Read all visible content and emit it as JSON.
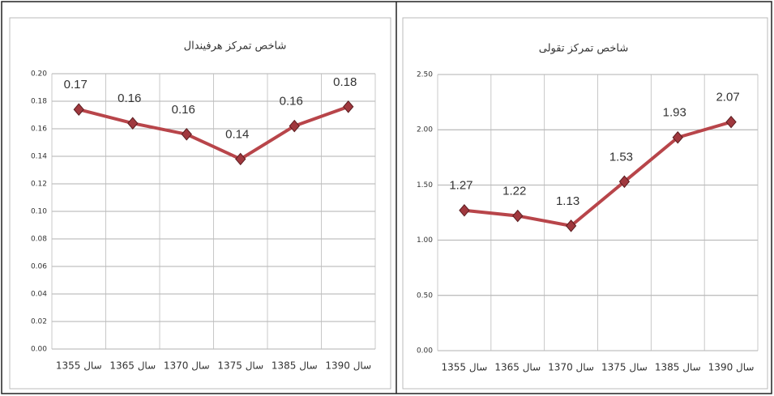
{
  "chart_data": [
    {
      "type": "line",
      "title": "شاخص تمرکز هرفیندال",
      "categories": [
        "سال 1355",
        "سال 1365",
        "سال 1370",
        "سال 1375",
        "سال 1385",
        "سال 1390"
      ],
      "values": [
        0.174,
        0.164,
        0.156,
        0.138,
        0.162,
        0.176
      ],
      "value_labels": [
        "0.17",
        "0.16",
        "0.16",
        "0.14",
        "0.16",
        "0.18"
      ],
      "color": "#b8454a",
      "ylim": [
        0,
        0.2
      ],
      "yticks": [
        {
          "value": 0,
          "label": "0.00"
        },
        {
          "value": 0.02,
          "label": "0.02"
        },
        {
          "value": 0.04,
          "label": "0.04"
        },
        {
          "value": 0.06,
          "label": "0.06"
        },
        {
          "value": 0.08,
          "label": "0.08"
        },
        {
          "value": 0.1,
          "label": "0.10"
        },
        {
          "value": 0.12,
          "label": "0.12"
        },
        {
          "value": 0.14,
          "label": "0.14"
        },
        {
          "value": 0.16,
          "label": "0.16"
        },
        {
          "value": 0.18,
          "label": "0.18"
        },
        {
          "value": 0.2,
          "label": "0.20"
        }
      ],
      "grid": true
    },
    {
      "type": "line",
      "title": "شاخص تمرکز تقولی",
      "categories": [
        "سال 1355",
        "سال 1365",
        "سال 1370",
        "سال 1375",
        "سال 1385",
        "سال 1390"
      ],
      "values": [
        1.27,
        1.22,
        1.13,
        1.53,
        1.93,
        2.07
      ],
      "color": "#b8454a",
      "ylim": [
        0,
        2.5
      ],
      "yticks": [
        {
          "value": 0,
          "label": "0.00"
        },
        {
          "value": 0.5,
          "label": "0.50"
        },
        {
          "value": 1,
          "label": "1.00"
        },
        {
          "value": 1.5,
          "label": "1.50"
        },
        {
          "value": 2,
          "label": "2.00"
        },
        {
          "value": 2.5,
          "label": "2.50"
        }
      ],
      "grid": true
    }
  ]
}
